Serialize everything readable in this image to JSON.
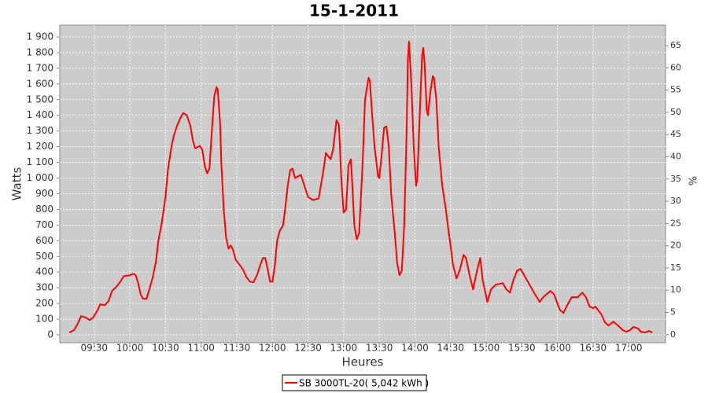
{
  "chart_data": {
    "type": "line",
    "title": "15-1-2011",
    "x_label": "Heures",
    "y_label": "Watts",
    "y2_label": "%",
    "x": [
      "09:09",
      "09:13",
      "09:16",
      "09:19",
      "09:23",
      "09:26",
      "09:29",
      "09:33",
      "09:35",
      "09:39",
      "09:42",
      "09:45",
      "09:49",
      "09:52",
      "09:55",
      "10:00",
      "10:03",
      "10:05",
      "10:07",
      "10:09",
      "10:11",
      "10:14",
      "10:16",
      "10:19",
      "10:22",
      "10:24",
      "10:27",
      "10:30",
      "10:32",
      "10:35",
      "10:37",
      "10:40",
      "10:43",
      "10:45",
      "10:48",
      "10:51",
      "10:53",
      "10:55",
      "10:59",
      "11:01",
      "11:03",
      "11:05",
      "11:07",
      "11:09",
      "11:11",
      "11:13",
      "11:14",
      "11:16",
      "11:17",
      "11:19",
      "11:21",
      "11:23",
      "11:25",
      "11:27",
      "11:29",
      "11:32",
      "11:35",
      "11:38",
      "11:41",
      "11:44",
      "11:47",
      "11:50",
      "11:52",
      "11:54",
      "11:56",
      "11:58",
      "12:00",
      "12:02",
      "12:04",
      "12:06",
      "12:09",
      "12:11",
      "12:13",
      "12:15",
      "12:17",
      "12:19",
      "12:24",
      "12:30",
      "12:34",
      "12:39",
      "12:43",
      "12:45",
      "12:49",
      "12:51",
      "12:54",
      "12:56",
      "12:58",
      "13:00",
      "13:02",
      "13:04",
      "13:06",
      "13:07",
      "13:09",
      "13:11",
      "13:13",
      "13:16",
      "13:18",
      "13:21",
      "13:22",
      "13:24",
      "13:26",
      "13:29",
      "13:30",
      "13:32",
      "13:34",
      "13:36",
      "13:38",
      "13:40",
      "13:43",
      "13:45",
      "13:47",
      "13:49",
      "13:51",
      "13:53",
      "13:54",
      "13:55",
      "13:57",
      "13:59",
      "14:01",
      "14:02",
      "14:04",
      "14:06",
      "14:07",
      "14:08",
      "14:10",
      "14:11",
      "14:13",
      "14:15",
      "14:16",
      "14:18",
      "14:20",
      "14:23",
      "14:26",
      "14:28",
      "14:30",
      "14:32",
      "14:35",
      "14:38",
      "14:41",
      "14:43",
      "14:46",
      "14:49",
      "14:52",
      "14:55",
      "14:57",
      "15:01",
      "15:04",
      "15:08",
      "15:14",
      "15:17",
      "15:20",
      "15:23",
      "15:26",
      "15:29",
      "15:32",
      "15:35",
      "15:41",
      "15:45",
      "15:48",
      "15:54",
      "15:57",
      "16:02",
      "16:05",
      "16:09",
      "16:12",
      "16:17",
      "16:21",
      "16:24",
      "16:27",
      "16:30",
      "16:32",
      "16:37",
      "16:40",
      "16:43",
      "16:47",
      "16:51",
      "16:55",
      "16:58",
      "17:01",
      "17:04",
      "17:08",
      "17:10",
      "17:14",
      "17:17",
      "17:20"
    ],
    "series": [
      {
        "name": "SB 3000TL-20( 5,042 kWh )",
        "color": "#ff0000",
        "values": [
          15,
          30,
          70,
          120,
          110,
          95,
          110,
          160,
          195,
          190,
          215,
          280,
          310,
          340,
          375,
          380,
          390,
          380,
          330,
          260,
          230,
          230,
          280,
          360,
          470,
          600,
          720,
          880,
          1050,
          1200,
          1270,
          1340,
          1390,
          1415,
          1400,
          1330,
          1240,
          1190,
          1205,
          1180,
          1080,
          1030,
          1060,
          1300,
          1520,
          1580,
          1560,
          1350,
          1100,
          800,
          620,
          550,
          570,
          540,
          480,
          450,
          420,
          370,
          340,
          335,
          380,
          450,
          490,
          490,
          420,
          340,
          340,
          440,
          600,
          660,
          700,
          820,
          960,
          1050,
          1060,
          1000,
          1020,
          880,
          860,
          870,
          1050,
          1160,
          1120,
          1180,
          1370,
          1340,
          1000,
          780,
          800,
          1080,
          1120,
          1000,
          700,
          610,
          650,
          1100,
          1500,
          1640,
          1620,
          1400,
          1200,
          1010,
          1000,
          1150,
          1320,
          1330,
          1200,
          900,
          650,
          460,
          380,
          410,
          700,
          1300,
          1750,
          1870,
          1600,
          1200,
          950,
          1000,
          1400,
          1780,
          1830,
          1750,
          1430,
          1400,
          1550,
          1650,
          1640,
          1500,
          1200,
          950,
          800,
          680,
          570,
          450,
          360,
          420,
          510,
          490,
          380,
          290,
          400,
          490,
          350,
          210,
          290,
          320,
          330,
          290,
          270,
          350,
          410,
          420,
          380,
          340,
          260,
          210,
          240,
          280,
          260,
          160,
          140,
          200,
          240,
          240,
          270,
          240,
          180,
          170,
          180,
          130,
          80,
          60,
          85,
          60,
          30,
          20,
          30,
          50,
          40,
          20,
          15,
          25,
          15
        ]
      }
    ],
    "xlim": [
      "09:01",
      "17:31"
    ],
    "xticks": [
      "09:30",
      "10:00",
      "10:30",
      "11:00",
      "11:30",
      "12:00",
      "12:30",
      "13:00",
      "13:30",
      "14:00",
      "14:30",
      "15:00",
      "15:30",
      "16:00",
      "16:30",
      "17:00"
    ],
    "ylim": [
      -50,
      1975
    ],
    "yticks": [
      0,
      100,
      200,
      300,
      400,
      500,
      600,
      700,
      800,
      900,
      {
        "value": 1000,
        "label": "1 000"
      },
      {
        "value": 1100,
        "label": "1 100"
      },
      {
        "value": 1200,
        "label": "1 200"
      },
      {
        "value": 1300,
        "label": "1 300"
      },
      {
        "value": 1400,
        "label": "1 400"
      },
      {
        "value": 1500,
        "label": "1 500"
      },
      {
        "value": 1600,
        "label": "1 600"
      },
      {
        "value": 1700,
        "label": "1 700"
      },
      {
        "value": 1800,
        "label": "1 800"
      },
      {
        "value": 1900,
        "label": "1 900"
      }
    ],
    "y2lim": [
      -1.8,
      69.6
    ],
    "y2ticks": [
      0,
      5,
      10,
      15,
      20,
      25,
      30,
      35,
      40,
      45,
      50,
      55,
      60,
      65
    ],
    "grid": true,
    "legend": "bottom"
  }
}
